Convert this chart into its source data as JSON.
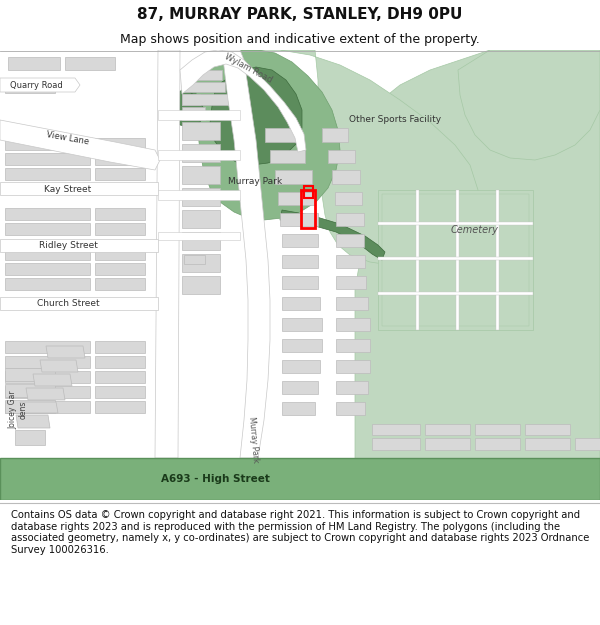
{
  "title_line1": "87, MURRAY PARK, STANLEY, DH9 0PU",
  "title_line2": "Map shows position and indicative extent of the property.",
  "footer_text": "Contains OS data © Crown copyright and database right 2021. This information is subject to Crown copyright and database rights 2023 and is reproduced with the permission of HM Land Registry. The polygons (including the associated geometry, namely x, y co-ordinates) are subject to Crown copyright and database rights 2023 Ordnance Survey 100026316.",
  "map_bg": "#f2f0eb",
  "road_white": "#ffffff",
  "road_outline": "#c8c8c8",
  "bld_fill": "#d8d8d8",
  "bld_outline": "#bbbbbb",
  "green_dark": "#5c8c5c",
  "green_mid": "#8ab88a",
  "green_light": "#c0d8c0",
  "green_road": "#7ab07a",
  "green_road_outline": "#5a905a",
  "highlight_red": "#ff0000",
  "white": "#ffffff",
  "title1_fontsize": 11,
  "title2_fontsize": 9,
  "footer_fontsize": 7.2,
  "label_fs": 6.5,
  "road_label_fs": 7.0
}
